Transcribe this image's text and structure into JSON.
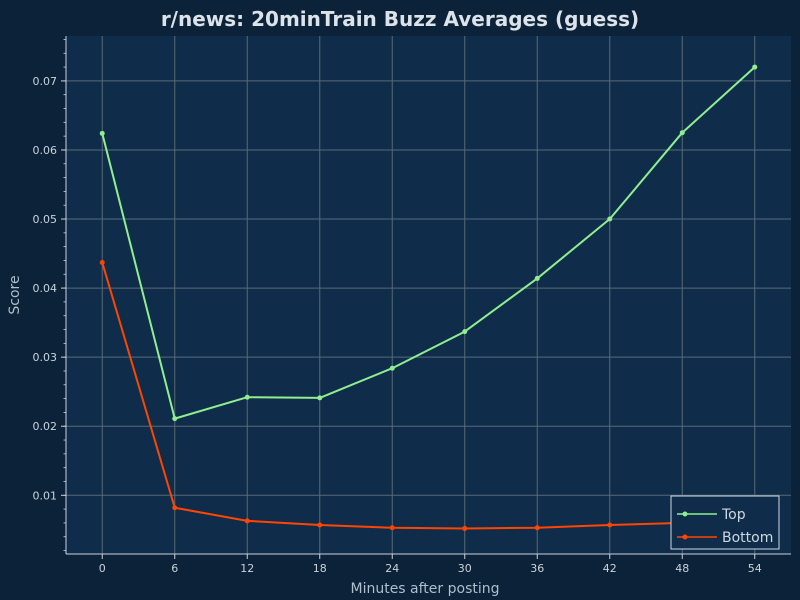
{
  "chart_data": {
    "type": "line",
    "title": "r/news: 20minTrain Buzz Averages (guess)",
    "xlabel": "Minutes after posting",
    "ylabel": "Score",
    "x": [
      0,
      6,
      12,
      18,
      24,
      30,
      36,
      42,
      48,
      54
    ],
    "x_ticks": [
      0,
      6,
      12,
      18,
      24,
      30,
      36,
      42,
      48,
      54
    ],
    "y_ticks": [
      0.01,
      0.02,
      0.03,
      0.04,
      0.05,
      0.06,
      0.07
    ],
    "y_tick_labels": [
      "0.01",
      "0.02",
      "0.03",
      "0.04",
      "0.05",
      "0.06",
      "0.07"
    ],
    "xlim": [
      -3,
      57
    ],
    "ylim": [
      0.0015,
      0.0765
    ],
    "grid": true,
    "legend_position": "bottom-right",
    "series": [
      {
        "name": "Top",
        "color": "#90ee90",
        "values": [
          0.0624,
          0.0211,
          0.0242,
          0.0241,
          0.0284,
          0.0337,
          0.0414,
          0.05,
          0.0625,
          0.072
        ]
      },
      {
        "name": "Bottom",
        "color": "#ff4500",
        "values": [
          0.0437,
          0.0082,
          0.0063,
          0.0057,
          0.0053,
          0.0052,
          0.0053,
          0.0057,
          0.006,
          0.0062
        ]
      }
    ],
    "colors": {
      "background": "#0c2238",
      "plot_background": "#0f2d4a",
      "grid": "#5a6a78",
      "axis": "#c9d3dc"
    }
  }
}
